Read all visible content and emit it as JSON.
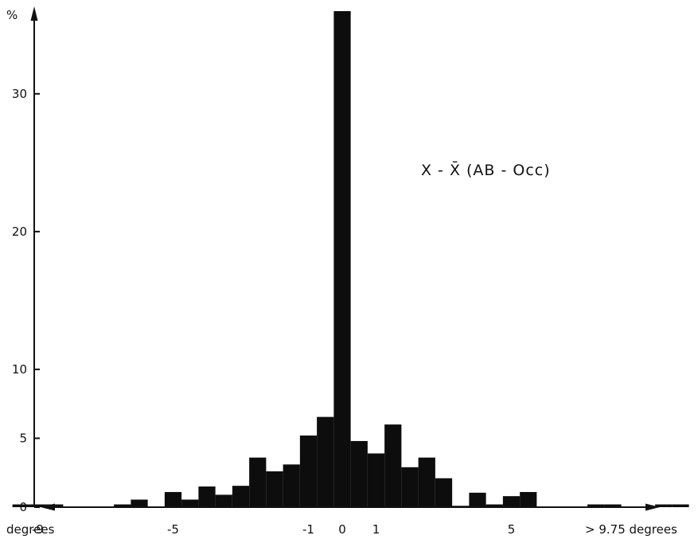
{
  "chart_data": {
    "type": "bar",
    "ylabel": "%",
    "ylim": [
      0,
      36
    ],
    "xlim": [
      -12.6,
      12.0
    ],
    "y_ticks": [
      {
        "value": 0,
        "label": "0"
      },
      {
        "value": 5,
        "label": "5"
      },
      {
        "value": 10,
        "label": "10"
      },
      {
        "value": 20,
        "label": "20"
      },
      {
        "value": 30,
        "label": "30"
      }
    ],
    "x_ticks": [
      {
        "value": -9,
        "label": "-9"
      },
      {
        "value": -5,
        "label": "-5"
      },
      {
        "value": -1,
        "label": "-1"
      },
      {
        "value": 0,
        "label": "0"
      },
      {
        "value": 1,
        "label": "1"
      },
      {
        "value": 5,
        "label": "5"
      }
    ],
    "x_left_label": "degrees",
    "x_right_label": "> 9.75 degrees",
    "annotation": "X - X̄ (AB - Occ)",
    "bin_width": 0.5,
    "bars": [
      {
        "x": -9.5,
        "y": 0.2
      },
      {
        "x": -9.0,
        "y": 0.2
      },
      {
        "x": -8.5,
        "y": 0.2
      },
      {
        "x": -6.5,
        "y": 0.2
      },
      {
        "x": -6.0,
        "y": 0.55
      },
      {
        "x": -5.0,
        "y": 1.1
      },
      {
        "x": -4.5,
        "y": 0.55
      },
      {
        "x": -4.0,
        "y": 1.5
      },
      {
        "x": -3.5,
        "y": 0.9
      },
      {
        "x": -3.0,
        "y": 1.55
      },
      {
        "x": -2.5,
        "y": 3.6
      },
      {
        "x": -2.0,
        "y": 2.6
      },
      {
        "x": -1.5,
        "y": 3.1
      },
      {
        "x": -1.0,
        "y": 5.2
      },
      {
        "x": -0.5,
        "y": 6.55
      },
      {
        "x": 0.0,
        "y": 36.0
      },
      {
        "x": 0.5,
        "y": 4.8
      },
      {
        "x": 1.0,
        "y": 3.9
      },
      {
        "x": 1.5,
        "y": 6.0
      },
      {
        "x": 2.0,
        "y": 2.9
      },
      {
        "x": 2.5,
        "y": 3.6
      },
      {
        "x": 3.0,
        "y": 2.1
      },
      {
        "x": 3.5,
        "y": 0.1
      },
      {
        "x": 4.0,
        "y": 1.05
      },
      {
        "x": 4.5,
        "y": 0.2
      },
      {
        "x": 5.0,
        "y": 0.8
      },
      {
        "x": 5.5,
        "y": 1.1
      },
      {
        "x": 7.5,
        "y": 0.2
      },
      {
        "x": 8.0,
        "y": 0.2
      },
      {
        "x": 9.5,
        "y": 0.2
      },
      {
        "x": 10.0,
        "y": 0.2
      }
    ],
    "grid": false,
    "legend": "none"
  }
}
